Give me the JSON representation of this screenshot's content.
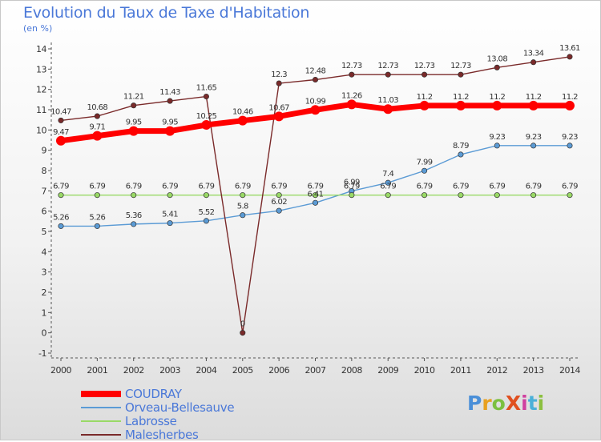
{
  "title": "Evolution du Taux de Taxe d'Habitation",
  "subtitle": "(en %)",
  "brand": {
    "text": "ProXiti",
    "letter_colors": [
      "#4a8fd8",
      "#e8a020",
      "#7cc040",
      "#e05020",
      "#d040a0",
      "#4ab0d8",
      "#8cc040"
    ]
  },
  "chart_data": {
    "type": "line",
    "x": [
      2000,
      2001,
      2002,
      2003,
      2004,
      2005,
      2006,
      2007,
      2008,
      2009,
      2010,
      2011,
      2012,
      2013,
      2014
    ],
    "ylim": [
      -1,
      14
    ],
    "yticks": [
      -1,
      0,
      1,
      2,
      3,
      4,
      5,
      6,
      7,
      8,
      9,
      10,
      11,
      12,
      13,
      14
    ],
    "grid": false,
    "legend_position": "bottom-left",
    "series": [
      {
        "name": "COUDRAY",
        "color": "#ff0000",
        "bold": true,
        "values": [
          9.47,
          9.71,
          9.95,
          9.95,
          10.25,
          10.46,
          10.67,
          10.99,
          11.26,
          11.03,
          11.2,
          11.2,
          11.2,
          11.2,
          11.2
        ],
        "labels": [
          "9.47",
          "9.71",
          "9.95",
          "9.95",
          "10.25",
          "10.46",
          "10.67",
          "10.99",
          "11.26",
          "11.03",
          "11.2",
          "11.2",
          "11.2",
          "11.2",
          "11.2"
        ]
      },
      {
        "name": "Orveau-Bellesauve",
        "color": "#5b9bd5",
        "bold": false,
        "values": [
          5.26,
          5.26,
          5.36,
          5.41,
          5.52,
          5.8,
          6.02,
          6.41,
          6.99,
          7.4,
          7.99,
          8.79,
          9.23,
          9.23,
          9.23
        ],
        "labels": [
          "5.26",
          "5.26",
          "5.36",
          "5.41",
          "5.52",
          "5.8",
          "6.02",
          "6.41",
          "6.99",
          "7.4",
          "7.99",
          "8.79",
          "9.23",
          "9.23",
          "9.23"
        ]
      },
      {
        "name": "Labrosse",
        "color": "#99d966",
        "bold": false,
        "values": [
          6.79,
          6.79,
          6.79,
          6.79,
          6.79,
          6.79,
          6.79,
          6.79,
          6.79,
          6.79,
          6.79,
          6.79,
          6.79,
          6.79,
          6.79
        ],
        "labels": [
          "6.79",
          "6.79",
          "6.79",
          "6.79",
          "6.79",
          "6.79",
          "6.79",
          "6.79",
          "6.79",
          "6.79",
          "6.79",
          "6.79",
          "6.79",
          "6.79",
          "6.79"
        ]
      },
      {
        "name": "Malesherbes",
        "color": "#7a2a2a",
        "bold": false,
        "values": [
          10.47,
          10.68,
          11.21,
          11.43,
          11.65,
          0,
          12.3,
          12.48,
          12.73,
          12.73,
          12.73,
          12.73,
          13.08,
          13.34,
          13.61
        ],
        "labels": [
          "10.47",
          "10.68",
          "11.21",
          "11.43",
          "11.65",
          "0",
          "12.3",
          "12.48",
          "12.73",
          "12.73",
          "12.73",
          "12.73",
          "13.08",
          "13.34",
          "13.61"
        ]
      }
    ]
  }
}
